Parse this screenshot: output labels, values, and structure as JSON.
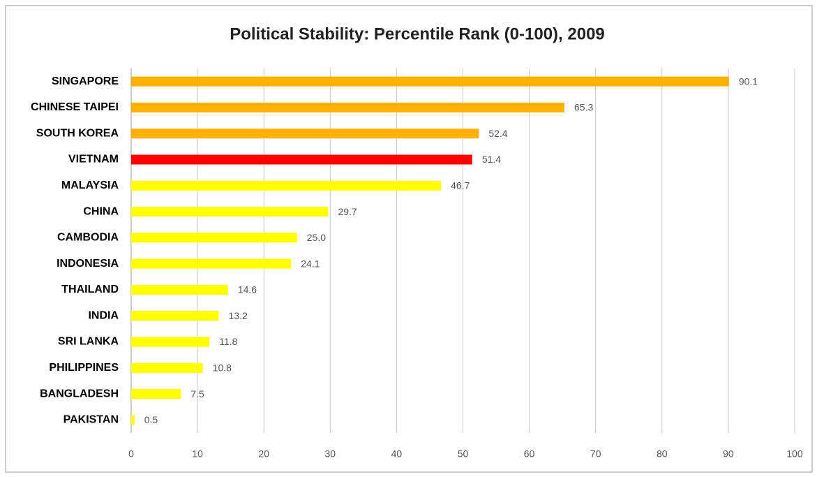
{
  "chart_data": {
    "type": "bar",
    "orientation": "horizontal",
    "title": "Political Stability: Percentile Rank (0-100), 2009",
    "categories": [
      "SINGAPORE",
      "CHINESE TAIPEI",
      "SOUTH KOREA",
      "VIETNAM",
      "MALAYSIA",
      "CHINA",
      "CAMBODIA",
      "INDONESIA",
      "THAILAND",
      "INDIA",
      "SRI LANKA",
      "PHILIPPINES",
      "BANGLADESH",
      "PAKISTAN"
    ],
    "values": [
      90.1,
      65.3,
      52.4,
      51.4,
      46.7,
      29.7,
      25.0,
      24.1,
      14.6,
      13.2,
      11.8,
      10.8,
      7.5,
      0.5
    ],
    "value_labels": [
      "90.1",
      "65.3",
      "52.4",
      "51.4",
      "46.7",
      "29.7",
      "25.0",
      "24.1",
      "14.6",
      "13.2",
      "11.8",
      "10.8",
      "7.5",
      "0.5"
    ],
    "colors": [
      "#ffb000",
      "#ffb000",
      "#ffb000",
      "#ff0000",
      "#ffff00",
      "#ffff00",
      "#ffff00",
      "#ffff00",
      "#ffff00",
      "#ffff00",
      "#ffff00",
      "#ffff00",
      "#ffff00",
      "#ffff00"
    ],
    "xlim": [
      0,
      100
    ],
    "xticks": [
      0,
      10,
      20,
      30,
      40,
      50,
      60,
      70,
      80,
      90,
      100
    ],
    "grid": true
  }
}
